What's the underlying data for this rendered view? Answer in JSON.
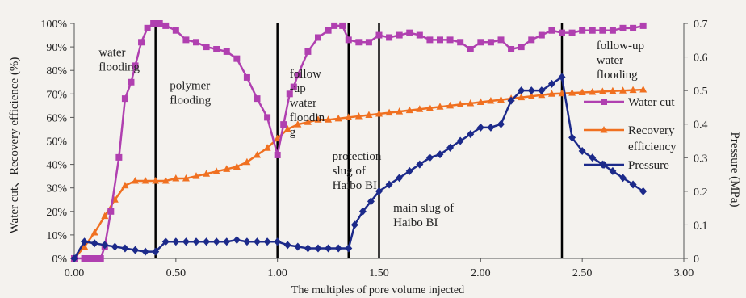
{
  "chart_data": {
    "type": "line",
    "xlabel": "The multiples of pore volume injected",
    "ylabel_left": "Water cut、Recovery efficience (%)",
    "ylabel_right": "Pressure (MPa)",
    "xlim": [
      0,
      3
    ],
    "ylim_left": [
      0,
      100
    ],
    "ylim_right": [
      0,
      0.7
    ],
    "x_ticks": [
      "0.00",
      "0.50",
      "1.00",
      "1.50",
      "2.00",
      "2.50",
      "3.00"
    ],
    "y_left_ticks": [
      "0%",
      "10%",
      "20%",
      "30%",
      "40%",
      "50%",
      "60%",
      "70%",
      "80%",
      "90%",
      "100%"
    ],
    "y_right_ticks": [
      "0",
      "0.1",
      "0.2",
      "0.3",
      "0.4",
      "0.5",
      "0.6",
      "0.7"
    ],
    "grid": false,
    "legend_position": "right",
    "series": [
      {
        "name": "Water cut",
        "axis": "left",
        "color": "#b040b0",
        "marker": "square",
        "x": [
          0.0,
          0.05,
          0.08,
          0.1,
          0.13,
          0.15,
          0.18,
          0.22,
          0.25,
          0.28,
          0.3,
          0.33,
          0.36,
          0.39,
          0.42,
          0.45,
          0.5,
          0.55,
          0.6,
          0.65,
          0.7,
          0.75,
          0.8,
          0.85,
          0.9,
          0.95,
          1.0,
          1.03,
          1.06,
          1.08,
          1.1,
          1.15,
          1.2,
          1.25,
          1.28,
          1.32,
          1.35,
          1.4,
          1.45,
          1.5,
          1.55,
          1.6,
          1.65,
          1.7,
          1.75,
          1.8,
          1.85,
          1.9,
          1.95,
          2.0,
          2.05,
          2.1,
          2.15,
          2.2,
          2.25,
          2.3,
          2.35,
          2.4,
          2.45,
          2.5,
          2.55,
          2.6,
          2.65,
          2.7,
          2.75,
          2.8
        ],
        "values": [
          0,
          0,
          0,
          0,
          0,
          5,
          20,
          43,
          68,
          75,
          82,
          92,
          98,
          100,
          100,
          99,
          97,
          93,
          92,
          90,
          89,
          88,
          85,
          77,
          68,
          60,
          44,
          57,
          70,
          73,
          78,
          88,
          94,
          97,
          99,
          99,
          93,
          92,
          92,
          95,
          94,
          95,
          96,
          95,
          93,
          93,
          93,
          92,
          89,
          92,
          92,
          93,
          89,
          90,
          93,
          95,
          97,
          96,
          96,
          97,
          97,
          97,
          97,
          98,
          98,
          99
        ]
      },
      {
        "name": "Recovery efficiency",
        "axis": "left",
        "color": "#f07020",
        "marker": "triangle",
        "x": [
          0.0,
          0.05,
          0.1,
          0.15,
          0.2,
          0.25,
          0.3,
          0.35,
          0.4,
          0.45,
          0.5,
          0.55,
          0.6,
          0.65,
          0.7,
          0.75,
          0.8,
          0.85,
          0.9,
          0.95,
          1.0,
          1.05,
          1.1,
          1.15,
          1.2,
          1.25,
          1.3,
          1.35,
          1.4,
          1.45,
          1.5,
          1.55,
          1.6,
          1.65,
          1.7,
          1.75,
          1.8,
          1.85,
          1.9,
          1.95,
          2.0,
          2.05,
          2.1,
          2.15,
          2.2,
          2.25,
          2.3,
          2.35,
          2.4,
          2.45,
          2.5,
          2.55,
          2.6,
          2.65,
          2.7,
          2.75,
          2.8
        ],
        "values": [
          0,
          5,
          11,
          18,
          25,
          31,
          33,
          33,
          33,
          33,
          34,
          34,
          35,
          36,
          37,
          38,
          39,
          41,
          44,
          47,
          51,
          55,
          57,
          58,
          59,
          59,
          59.5,
          60,
          60.5,
          61,
          61.5,
          62,
          62.5,
          63,
          63.5,
          64,
          64.5,
          65,
          65.5,
          66,
          66.5,
          67,
          67.5,
          68,
          68.5,
          69,
          69.5,
          70,
          70.2,
          70.4,
          70.6,
          70.8,
          71,
          71.2,
          71.4,
          71.6,
          71.8
        ]
      },
      {
        "name": "Pressure",
        "axis": "right",
        "color": "#1c2a8a",
        "marker": "diamond",
        "x": [
          0.0,
          0.05,
          0.1,
          0.15,
          0.2,
          0.25,
          0.3,
          0.35,
          0.4,
          0.45,
          0.5,
          0.55,
          0.6,
          0.65,
          0.7,
          0.75,
          0.8,
          0.85,
          0.9,
          0.95,
          1.0,
          1.05,
          1.1,
          1.15,
          1.2,
          1.25,
          1.3,
          1.35,
          1.38,
          1.42,
          1.46,
          1.5,
          1.55,
          1.6,
          1.65,
          1.7,
          1.75,
          1.8,
          1.85,
          1.9,
          1.95,
          2.0,
          2.05,
          2.1,
          2.15,
          2.2,
          2.25,
          2.3,
          2.35,
          2.4,
          2.45,
          2.5,
          2.55,
          2.6,
          2.65,
          2.7,
          2.75,
          2.8
        ],
        "values": [
          0.0,
          0.05,
          0.045,
          0.04,
          0.035,
          0.03,
          0.025,
          0.02,
          0.02,
          0.05,
          0.05,
          0.05,
          0.05,
          0.05,
          0.05,
          0.05,
          0.055,
          0.05,
          0.05,
          0.05,
          0.05,
          0.04,
          0.035,
          0.03,
          0.03,
          0.03,
          0.03,
          0.03,
          0.1,
          0.14,
          0.17,
          0.2,
          0.22,
          0.24,
          0.26,
          0.28,
          0.3,
          0.31,
          0.33,
          0.35,
          0.37,
          0.39,
          0.39,
          0.4,
          0.47,
          0.5,
          0.5,
          0.5,
          0.52,
          0.54,
          0.36,
          0.32,
          0.3,
          0.28,
          0.26,
          0.24,
          0.22,
          0.2
        ]
      }
    ],
    "stage_lines_x": [
      0.4,
      1.0,
      1.35,
      1.5,
      2.4
    ],
    "annotations": [
      {
        "lines": [
          "water",
          "flooding"
        ],
        "x": 0.12,
        "y": 86
      },
      {
        "lines": [
          "polymer",
          "flooding"
        ],
        "x": 0.47,
        "y": 72
      },
      {
        "lines": [
          "follow",
          "-up",
          "water",
          "floodin",
          "g"
        ],
        "x": 1.06,
        "y": 77
      },
      {
        "lines": [
          "protection",
          "slug of",
          "Haibo BI"
        ],
        "x": 1.27,
        "y": 42
      },
      {
        "lines": [
          "main slug of",
          "Haibo BI"
        ],
        "x": 1.57,
        "y": 20
      },
      {
        "lines": [
          "follow-up",
          "water",
          "flooding"
        ],
        "x": 2.57,
        "y": 89
      }
    ]
  }
}
